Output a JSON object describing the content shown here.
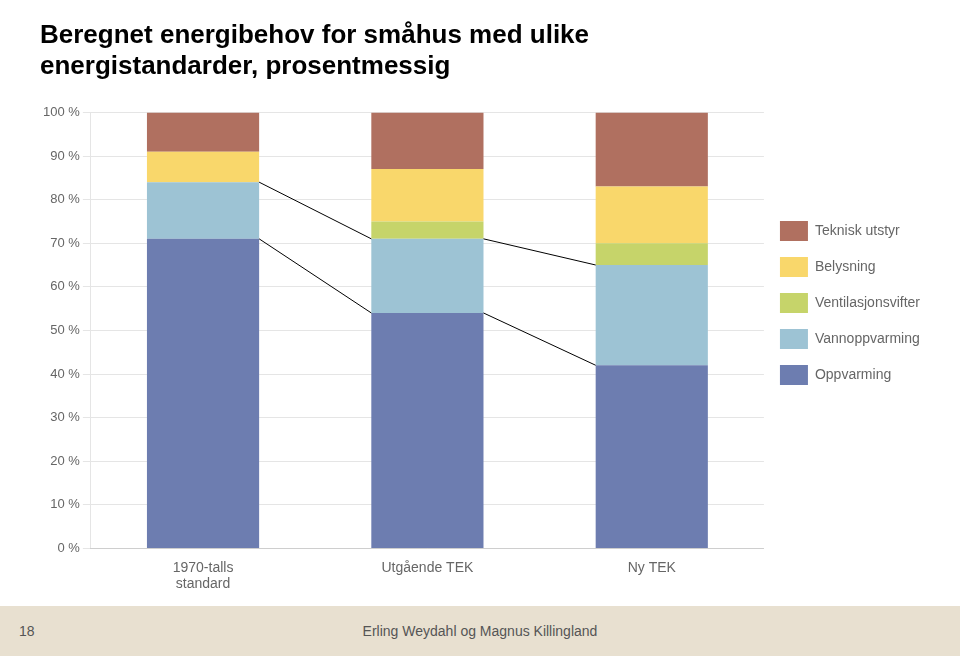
{
  "chart_data": {
    "type": "bar",
    "stacked": true,
    "title": "Beregnet energibehov for småhus med ulike\nenergistandarder, prosentmessig",
    "categories": [
      "1970-talls\nstandard",
      "Utgående TEK",
      "Ny TEK"
    ],
    "series": [
      {
        "name": "Oppvarming",
        "color": "#6d7db0",
        "values": [
          71,
          54,
          42
        ]
      },
      {
        "name": "Vannoppvarming",
        "color": "#9dc3d4",
        "values": [
          13,
          17,
          23
        ]
      },
      {
        "name": "Ventilasjonsvifter",
        "color": "#c6d46a",
        "values": [
          0,
          4,
          5
        ]
      },
      {
        "name": "Belysning",
        "color": "#f9d76b",
        "values": [
          7,
          12,
          13
        ]
      },
      {
        "name": "Teknisk utstyr",
        "color": "#b07060",
        "values": [
          9,
          13,
          17
        ]
      }
    ],
    "ylim": [
      0,
      100
    ],
    "yticks": [
      {
        "value": 0,
        "label": "0 %"
      },
      {
        "value": 10,
        "label": "10 %"
      },
      {
        "value": 20,
        "label": "20 %"
      },
      {
        "value": 30,
        "label": "30 %"
      },
      {
        "value": 40,
        "label": "40 %"
      },
      {
        "value": 50,
        "label": "50 %"
      },
      {
        "value": 60,
        "label": "60 %"
      },
      {
        "value": 70,
        "label": "70 %"
      },
      {
        "value": 80,
        "label": "80 %"
      },
      {
        "value": 90,
        "label": "90 %"
      },
      {
        "value": 100,
        "label": "100 %"
      }
    ],
    "grid": true,
    "legend": "right",
    "annotations": [
      "18",
      "Erling Weydahl og Magnus Killingland"
    ]
  }
}
